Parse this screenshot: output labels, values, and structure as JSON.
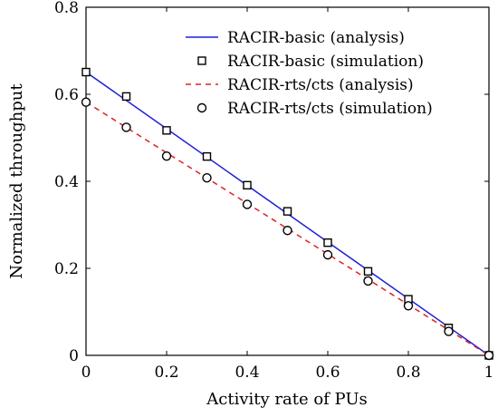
{
  "chart_data": {
    "type": "line",
    "xlabel": "Activity rate of PUs",
    "ylabel": "Normalized throughput",
    "xlim": [
      0,
      1
    ],
    "ylim": [
      0,
      0.8
    ],
    "xticks": [
      0,
      0.2,
      0.4,
      0.6,
      0.8,
      1
    ],
    "yticks": [
      0,
      0.2,
      0.4,
      0.6,
      0.8
    ],
    "xtick_labels": [
      "0",
      "0.2",
      "0.4",
      "0.6",
      "0.8",
      "1"
    ],
    "ytick_labels": [
      "0",
      "0.2",
      "0.4",
      "0.6",
      "0.8"
    ],
    "grid": false,
    "legend_position": "top-right",
    "series": [
      {
        "name": "RACIR-basic (analysis)",
        "style": "solid-line",
        "color": "#1f1fd6",
        "x": [
          0,
          1
        ],
        "y": [
          0.651,
          0
        ]
      },
      {
        "name": "RACIR-basic (simulation)",
        "style": "square-marker",
        "color": "#000000",
        "x": [
          0,
          0.1,
          0.2,
          0.3,
          0.4,
          0.5,
          0.6,
          0.7,
          0.8,
          0.9,
          1
        ],
        "y": [
          0.651,
          0.595,
          0.517,
          0.457,
          0.391,
          0.331,
          0.259,
          0.193,
          0.129,
          0.063,
          0
        ]
      },
      {
        "name": "RACIR-rts/cts (analysis)",
        "style": "dashed-line",
        "color": "#e02020",
        "x": [
          0,
          1
        ],
        "y": [
          0.582,
          0
        ]
      },
      {
        "name": "RACIR-rts/cts (simulation)",
        "style": "circle-marker",
        "color": "#000000",
        "x": [
          0,
          0.1,
          0.2,
          0.3,
          0.4,
          0.5,
          0.6,
          0.7,
          0.8,
          0.9,
          1
        ],
        "y": [
          0.582,
          0.524,
          0.458,
          0.408,
          0.347,
          0.287,
          0.231,
          0.171,
          0.114,
          0.055,
          0
        ]
      }
    ]
  }
}
